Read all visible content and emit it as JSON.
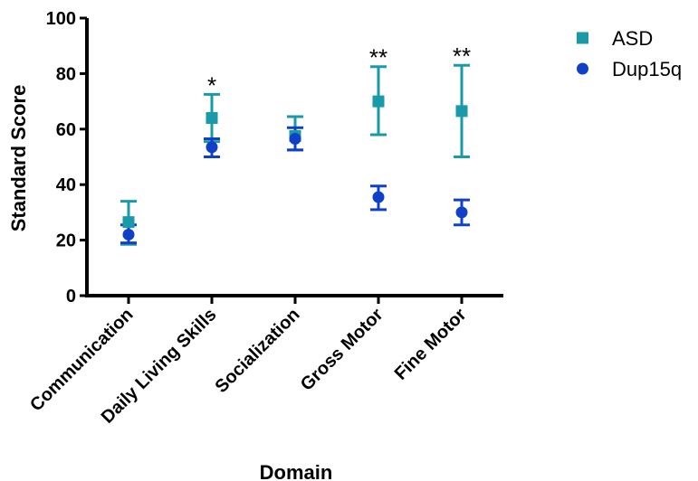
{
  "chart_data": {
    "type": "scatter",
    "xlabel": "Domain",
    "ylabel": "Standard Score",
    "ylim": [
      0,
      100
    ],
    "yticks": [
      0,
      20,
      40,
      60,
      80,
      100
    ],
    "categories": [
      "Communication",
      "Daily Living Skills",
      "Socialization",
      "Gross Motor",
      "Fine Motor"
    ],
    "significance": [
      "",
      "*",
      "",
      "**",
      "**"
    ],
    "legend_position": "top-right",
    "series": [
      {
        "name": "ASD",
        "marker": "square",
        "color": "#1a9aa8",
        "values": [
          26.5,
          64,
          57.5,
          70,
          66.5
        ],
        "error_low": [
          18.5,
          55.5,
          52.5,
          58,
          50
        ],
        "error_high": [
          34,
          72.5,
          64.5,
          82.5,
          83
        ]
      },
      {
        "name": "Dup15q",
        "marker": "circle",
        "color": "#1040c8",
        "values": [
          22,
          53.5,
          56.5,
          35.5,
          30
        ],
        "error_low": [
          19,
          50,
          52.5,
          31,
          25.5
        ],
        "error_high": [
          25.5,
          56.5,
          60.5,
          39.5,
          34.5
        ]
      }
    ]
  }
}
